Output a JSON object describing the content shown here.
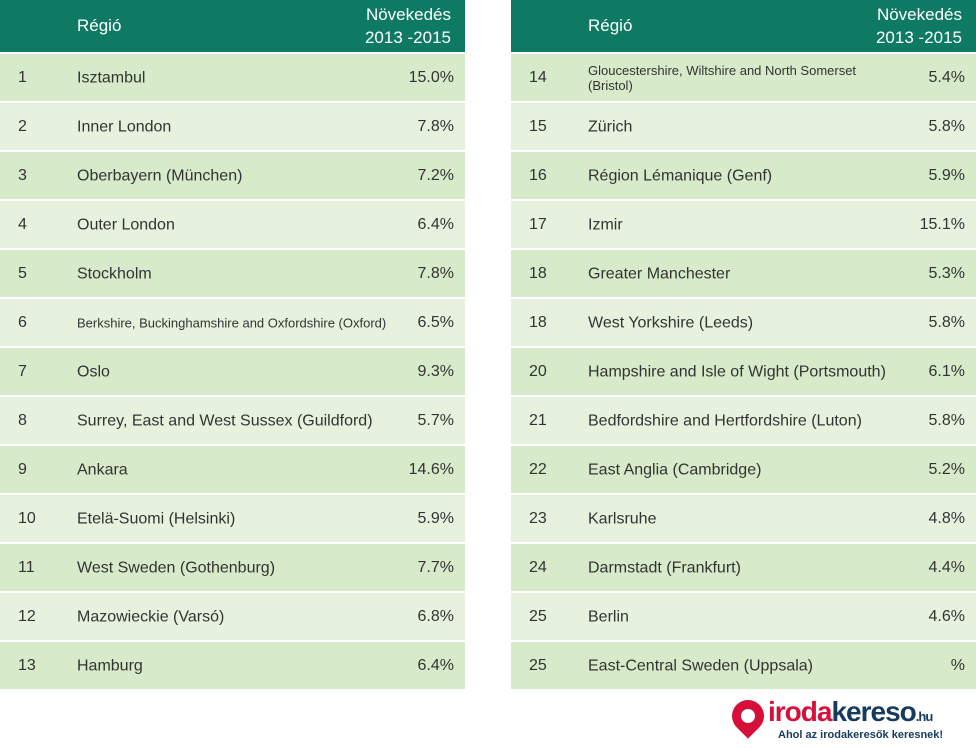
{
  "header": {
    "region": "Régió",
    "growth_line1": "Növekedés",
    "growth_line2": "2013 -2015"
  },
  "left": [
    {
      "rank": "1",
      "region": "Isztambul",
      "value": "15.0%"
    },
    {
      "rank": "2",
      "region": "Inner London",
      "value": "7.8%"
    },
    {
      "rank": "3",
      "region": "Oberbayern (München)",
      "value": "7.2%"
    },
    {
      "rank": "4",
      "region": "Outer London",
      "value": "6.4%"
    },
    {
      "rank": "5",
      "region": "Stockholm",
      "value": "7.8%"
    },
    {
      "rank": "6",
      "region": "Berkshire, Buckinghamshire and Oxfordshire (Oxford)",
      "value": "6.5%"
    },
    {
      "rank": "7",
      "region": "Oslo",
      "value": "9.3%"
    },
    {
      "rank": "8",
      "region": "Surrey, East and West Sussex (Guildford)",
      "value": "5.7%"
    },
    {
      "rank": "9",
      "region": "Ankara",
      "value": "14.6%"
    },
    {
      "rank": "10",
      "region": "Etelä-Suomi (Helsinki)",
      "value": "5.9%"
    },
    {
      "rank": "11",
      "region": "West Sweden (Gothenburg)",
      "value": "7.7%"
    },
    {
      "rank": "12",
      "region": "Mazowieckie (Varsó)",
      "value": "6.8%"
    },
    {
      "rank": "13",
      "region": "Hamburg",
      "value": "6.4%"
    }
  ],
  "right": [
    {
      "rank": "14",
      "region": "Gloucestershire, Wiltshire and North Somerset (Bristol)",
      "value": "5.4%"
    },
    {
      "rank": "15",
      "region": "Zürich",
      "value": "5.8%"
    },
    {
      "rank": "16",
      "region": "Région Lémanique (Genf)",
      "value": "5.9%"
    },
    {
      "rank": "17",
      "region": "Izmir",
      "value": "15.1%"
    },
    {
      "rank": "18",
      "region": "Greater Manchester",
      "value": "5.3%"
    },
    {
      "rank": "18",
      "region": "West Yorkshire (Leeds)",
      "value": "5.8%"
    },
    {
      "rank": "20",
      "region": "Hampshire and Isle of Wight (Portsmouth)",
      "value": "6.1%"
    },
    {
      "rank": "21",
      "region": "Bedfordshire and Hertfordshire (Luton)",
      "value": "5.8%"
    },
    {
      "rank": "22",
      "region": "East Anglia (Cambridge)",
      "value": "5.2%"
    },
    {
      "rank": "23",
      "region": "Karlsruhe",
      "value": "4.8%"
    },
    {
      "rank": "24",
      "region": "Darmstadt (Frankfurt)",
      "value": "4.4%"
    },
    {
      "rank": "25",
      "region": "Berlin",
      "value": "4.6%"
    },
    {
      "rank": "25",
      "region": "East-Central Sweden (Uppsala)",
      "value": "%"
    }
  ],
  "logo": {
    "part1": "iroda",
    "part2": "kereso",
    "tld": ".hu",
    "slogan": "Ahol az irodakeresők keresnek!"
  },
  "colors": {
    "header": "#0e7a63",
    "row_a": "#d7eac9",
    "row_b": "#e6f2de",
    "logo_red": "#d7103a",
    "logo_blue": "#163b5c"
  }
}
